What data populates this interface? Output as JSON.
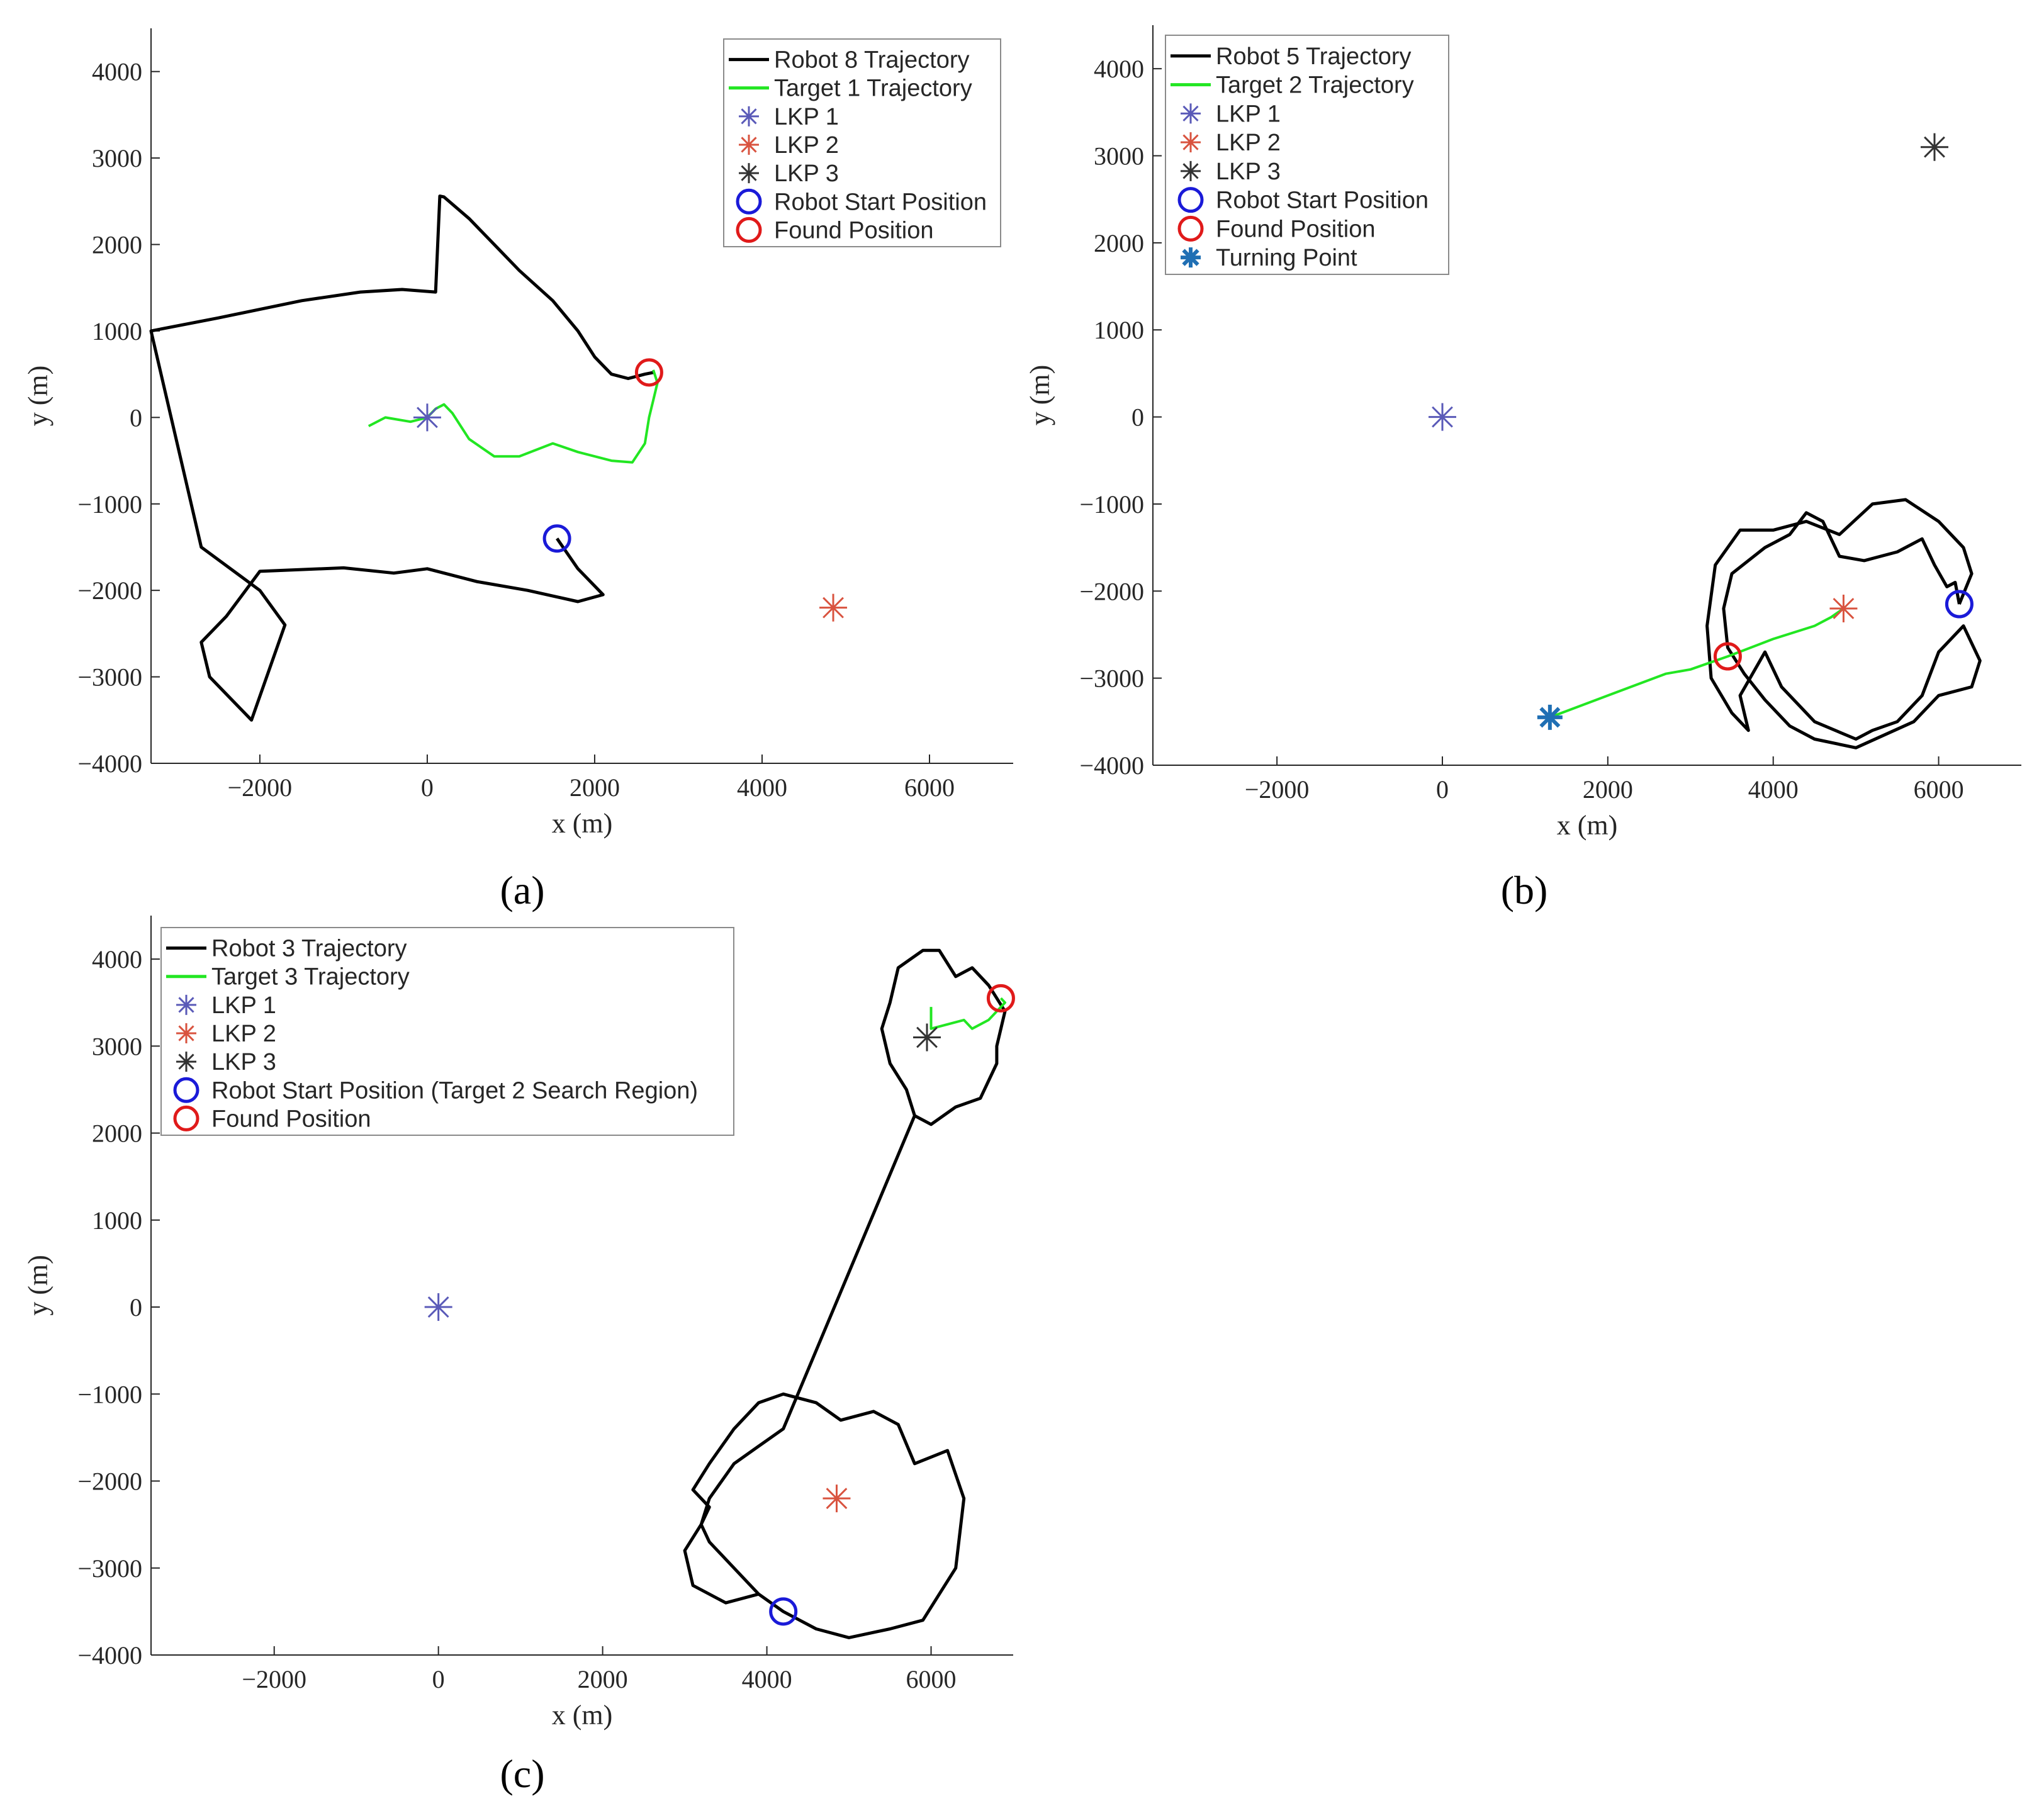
{
  "figure": {
    "panels": [
      "(a)",
      "(b)",
      "(c)"
    ]
  },
  "colors": {
    "robot": "#000000",
    "target": "#22e622",
    "lkp1": "#5a5ab8",
    "lkp2": "#d9533f",
    "lkp3": "#333333",
    "start": "#1a1ad8",
    "found": "#e01a1a",
    "turning": "#1f6fb4"
  },
  "chart_data": [
    {
      "type": "line",
      "panel_label": "(a)",
      "xlabel": "x (m)",
      "ylabel": "y (m)",
      "xlim": [
        -3300,
        7000
      ],
      "ylim": [
        -4000,
        4500
      ],
      "xticks": [
        -2000,
        0,
        2000,
        4000,
        6000
      ],
      "yticks": [
        -4000,
        -3000,
        -2000,
        -1000,
        0,
        1000,
        2000,
        3000,
        4000
      ],
      "legend_position": "top-right",
      "legend": [
        "Robot 8 Trajectory",
        "Target 1 Trajectory",
        "LKP 1",
        "LKP 2",
        "LKP 3",
        "Robot Start Position",
        "Found Position"
      ],
      "series": [
        {
          "name": "Robot 8 Trajectory",
          "color": "robot",
          "x": [
            1550,
            1800,
            2100,
            1800,
            1200,
            600,
            0,
            -400,
            -1000,
            -2000,
            -2400,
            -2700,
            -2600,
            -2100,
            -1700,
            -2000,
            -2700,
            -3300,
            -2500,
            -2000,
            -1500,
            -800,
            -300,
            100,
            150,
            200,
            500,
            800,
            1100,
            1500,
            1800,
            2000,
            2200,
            2400,
            2600,
            2700
          ],
          "y": [
            -1400,
            -1750,
            -2050,
            -2130,
            -2000,
            -1900,
            -1750,
            -1800,
            -1740,
            -1780,
            -2300,
            -2600,
            -3000,
            -3500,
            -2400,
            -2000,
            -1500,
            1000,
            1150,
            1250,
            1350,
            1450,
            1480,
            1450,
            2560,
            2550,
            2300,
            2000,
            1700,
            1350,
            1000,
            700,
            500,
            450,
            500,
            520
          ]
        },
        {
          "name": "Target 1 Trajectory",
          "color": "target",
          "x": [
            -700,
            -500,
            -200,
            0,
            100,
            200,
            300,
            500,
            800,
            1100,
            1500,
            1800,
            2200,
            2450,
            2600,
            2650,
            2700,
            2750,
            2700
          ],
          "y": [
            -100,
            0,
            -50,
            0,
            100,
            150,
            50,
            -250,
            -450,
            -450,
            -300,
            -400,
            -500,
            -520,
            -300,
            0,
            200,
            400,
            550
          ]
        },
        {
          "name": "LKP 1",
          "color": "lkp1",
          "x": [
            0
          ],
          "y": [
            0
          ]
        },
        {
          "name": "LKP 2",
          "color": "lkp2",
          "x": [
            4850
          ],
          "y": [
            -2200
          ]
        },
        {
          "name": "Robot Start Position",
          "color": "start",
          "x": [
            1550
          ],
          "y": [
            -1400
          ]
        },
        {
          "name": "Found Position",
          "color": "found",
          "x": [
            2650
          ],
          "y": [
            520
          ]
        }
      ]
    },
    {
      "type": "line",
      "panel_label": "(b)",
      "xlabel": "x (m)",
      "ylabel": "y (m)",
      "xlim": [
        -3500,
        7000
      ],
      "ylim": [
        -4000,
        4500
      ],
      "xticks": [
        -2000,
        0,
        2000,
        4000,
        6000
      ],
      "yticks": [
        -4000,
        -3000,
        -2000,
        -1000,
        0,
        1000,
        2000,
        3000,
        4000
      ],
      "legend_position": "top-left",
      "legend": [
        "Robot 5 Trajectory",
        "Target 2 Trajectory",
        "LKP 1",
        "LKP 2",
        "LKP 3",
        "Robot Start Position",
        "Found Position",
        "Turning Point"
      ],
      "series": [
        {
          "name": "Robot 5 Trajectory",
          "color": "robot",
          "x": [
            6250,
            6400,
            6300,
            6000,
            5600,
            5200,
            4800,
            4400,
            4000,
            3600,
            3300,
            3200,
            3250,
            3500,
            3700,
            3600,
            3900,
            4100,
            4500,
            5000,
            5200,
            5500,
            5800,
            6000,
            6300,
            6500,
            6400,
            6000,
            5700,
            5000,
            4500,
            4200,
            3900,
            3650,
            3450,
            3400,
            3500,
            3900,
            4200,
            4400,
            4600,
            4800,
            5100,
            5500,
            5800,
            5950,
            6100,
            6200,
            6250
          ],
          "y": [
            -2150,
            -1800,
            -1500,
            -1200,
            -950,
            -1000,
            -1350,
            -1200,
            -1300,
            -1300,
            -1700,
            -2400,
            -3000,
            -3400,
            -3600,
            -3200,
            -2700,
            -3100,
            -3500,
            -3700,
            -3600,
            -3500,
            -3200,
            -2700,
            -2400,
            -2800,
            -3100,
            -3200,
            -3500,
            -3800,
            -3700,
            -3550,
            -3250,
            -2950,
            -2650,
            -2200,
            -1800,
            -1500,
            -1350,
            -1100,
            -1200,
            -1600,
            -1650,
            -1550,
            -1400,
            -1700,
            -1950,
            -1900,
            -2150
          ]
        },
        {
          "name": "Target 2 Trajectory",
          "color": "target",
          "x": [
            1300,
            2000,
            2700,
            3000,
            3450,
            4000,
            4500,
            4700,
            4850
          ],
          "y": [
            -3450,
            -3200,
            -2950,
            -2900,
            -2750,
            -2550,
            -2400,
            -2300,
            -2200
          ]
        },
        {
          "name": "LKP 1",
          "color": "lkp1",
          "x": [
            0
          ],
          "y": [
            0
          ]
        },
        {
          "name": "LKP 2",
          "color": "lkp2",
          "x": [
            4850
          ],
          "y": [
            -2200
          ]
        },
        {
          "name": "LKP 3",
          "color": "lkp3",
          "x": [
            5950
          ],
          "y": [
            3100
          ]
        },
        {
          "name": "Robot Start Position",
          "color": "start",
          "x": [
            6250
          ],
          "y": [
            -2150
          ]
        },
        {
          "name": "Found Position",
          "color": "found",
          "x": [
            3450
          ],
          "y": [
            -2750
          ]
        },
        {
          "name": "Turning Point",
          "color": "turning",
          "x": [
            1300
          ],
          "y": [
            -3450
          ]
        }
      ]
    },
    {
      "type": "line",
      "panel_label": "(c)",
      "xlabel": "x (m)",
      "ylabel": "y (m)",
      "xlim": [
        -3500,
        7000
      ],
      "ylim": [
        -4000,
        4500
      ],
      "xticks": [
        -2000,
        0,
        2000,
        4000,
        6000
      ],
      "yticks": [
        -4000,
        -3000,
        -2000,
        -1000,
        0,
        1000,
        2000,
        3000,
        4000
      ],
      "legend_position": "top-left",
      "legend": [
        "Robot 3 Trajectory",
        "Target 3 Trajectory",
        "LKP 1",
        "LKP 2",
        "LKP 3",
        "Robot Start Position (Target 2 Search Region)",
        "Found Position"
      ],
      "series": [
        {
          "name": "Robot 3 Trajectory",
          "color": "robot",
          "x": [
            4200,
            3900,
            3500,
            3100,
            3000,
            3200,
            3300,
            3100,
            3300,
            3600,
            3900,
            4200,
            4600,
            4900,
            5300,
            5600,
            5800,
            6200,
            6400,
            6300,
            6100,
            5900,
            5500,
            5000,
            4600,
            4200,
            3900,
            3600,
            3300,
            3200,
            3300,
            3600,
            3900,
            4200,
            5800,
            5700,
            5500,
            5400,
            5500,
            5600,
            5900,
            6100,
            6300,
            6500,
            6700,
            6900,
            6800,
            6800,
            6600,
            6300,
            6000,
            5800,
            5800
          ],
          "y": [
            -3500,
            -3300,
            -3400,
            -3200,
            -2800,
            -2500,
            -2300,
            -2100,
            -1800,
            -1400,
            -1100,
            -1000,
            -1100,
            -1300,
            -1200,
            -1350,
            -1800,
            -1650,
            -2200,
            -3000,
            -3300,
            -3600,
            -3700,
            -3800,
            -3700,
            -3500,
            -3300,
            -3000,
            -2700,
            -2500,
            -2200,
            -1800,
            -1600,
            -1400,
            2200,
            2500,
            2800,
            3200,
            3500,
            3900,
            4100,
            4100,
            3800,
            3900,
            3700,
            3400,
            3000,
            2800,
            2400,
            2300,
            2100,
            2200,
            2200
          ]
        },
        {
          "name": "Target 3 Trajectory",
          "color": "target",
          "x": [
            6000,
            6000,
            6200,
            6400,
            6500,
            6700,
            6900,
            6850
          ],
          "y": [
            3450,
            3200,
            3250,
            3300,
            3200,
            3300,
            3500,
            3550
          ]
        },
        {
          "name": "LKP 1",
          "color": "lkp1",
          "x": [
            0
          ],
          "y": [
            0
          ]
        },
        {
          "name": "LKP 2",
          "color": "lkp2",
          "x": [
            4850
          ],
          "y": [
            -2200
          ]
        },
        {
          "name": "LKP 3",
          "color": "lkp3",
          "x": [
            5950
          ],
          "y": [
            3100
          ]
        },
        {
          "name": "Robot Start Position (Target 2 Search Region)",
          "color": "start",
          "x": [
            4200
          ],
          "y": [
            -3500
          ]
        },
        {
          "name": "Found Position",
          "color": "found",
          "x": [
            6850
          ],
          "y": [
            3550
          ]
        }
      ]
    }
  ]
}
